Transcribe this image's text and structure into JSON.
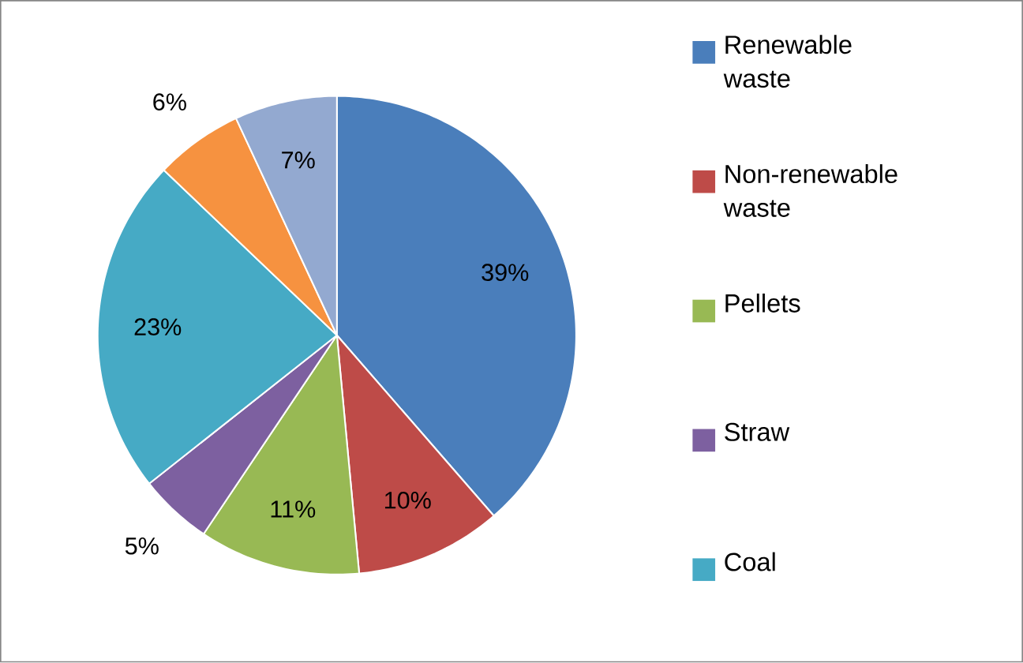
{
  "chart_data": {
    "type": "pie",
    "categories": [
      "Renewable waste",
      "Non-renewable waste",
      "Pellets",
      "Straw",
      "Coal",
      null,
      null
    ],
    "values": [
      39,
      10,
      11,
      5,
      23,
      6,
      7
    ],
    "colors": [
      "#4a7ebb",
      "#be4b48",
      "#98b954",
      "#7d60a0",
      "#46aac5",
      "#f69240",
      "#93a9d0"
    ],
    "value_labels": [
      "39%",
      "10%",
      "11%",
      "5%",
      "23%",
      "6%",
      "7%"
    ],
    "legend": "right"
  }
}
